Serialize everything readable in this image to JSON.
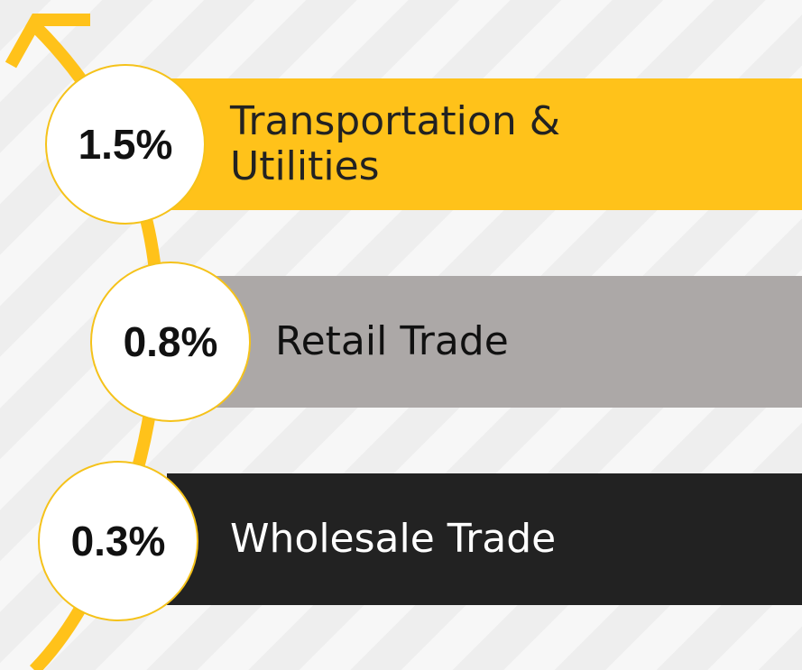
{
  "items": [
    {
      "value_label": "1.5%",
      "name": "Transportation & Utilities"
    },
    {
      "value_label": "0.8%",
      "name": "Retail Trade"
    },
    {
      "value_label": "0.3%",
      "name": "Wholesale Trade"
    }
  ]
}
